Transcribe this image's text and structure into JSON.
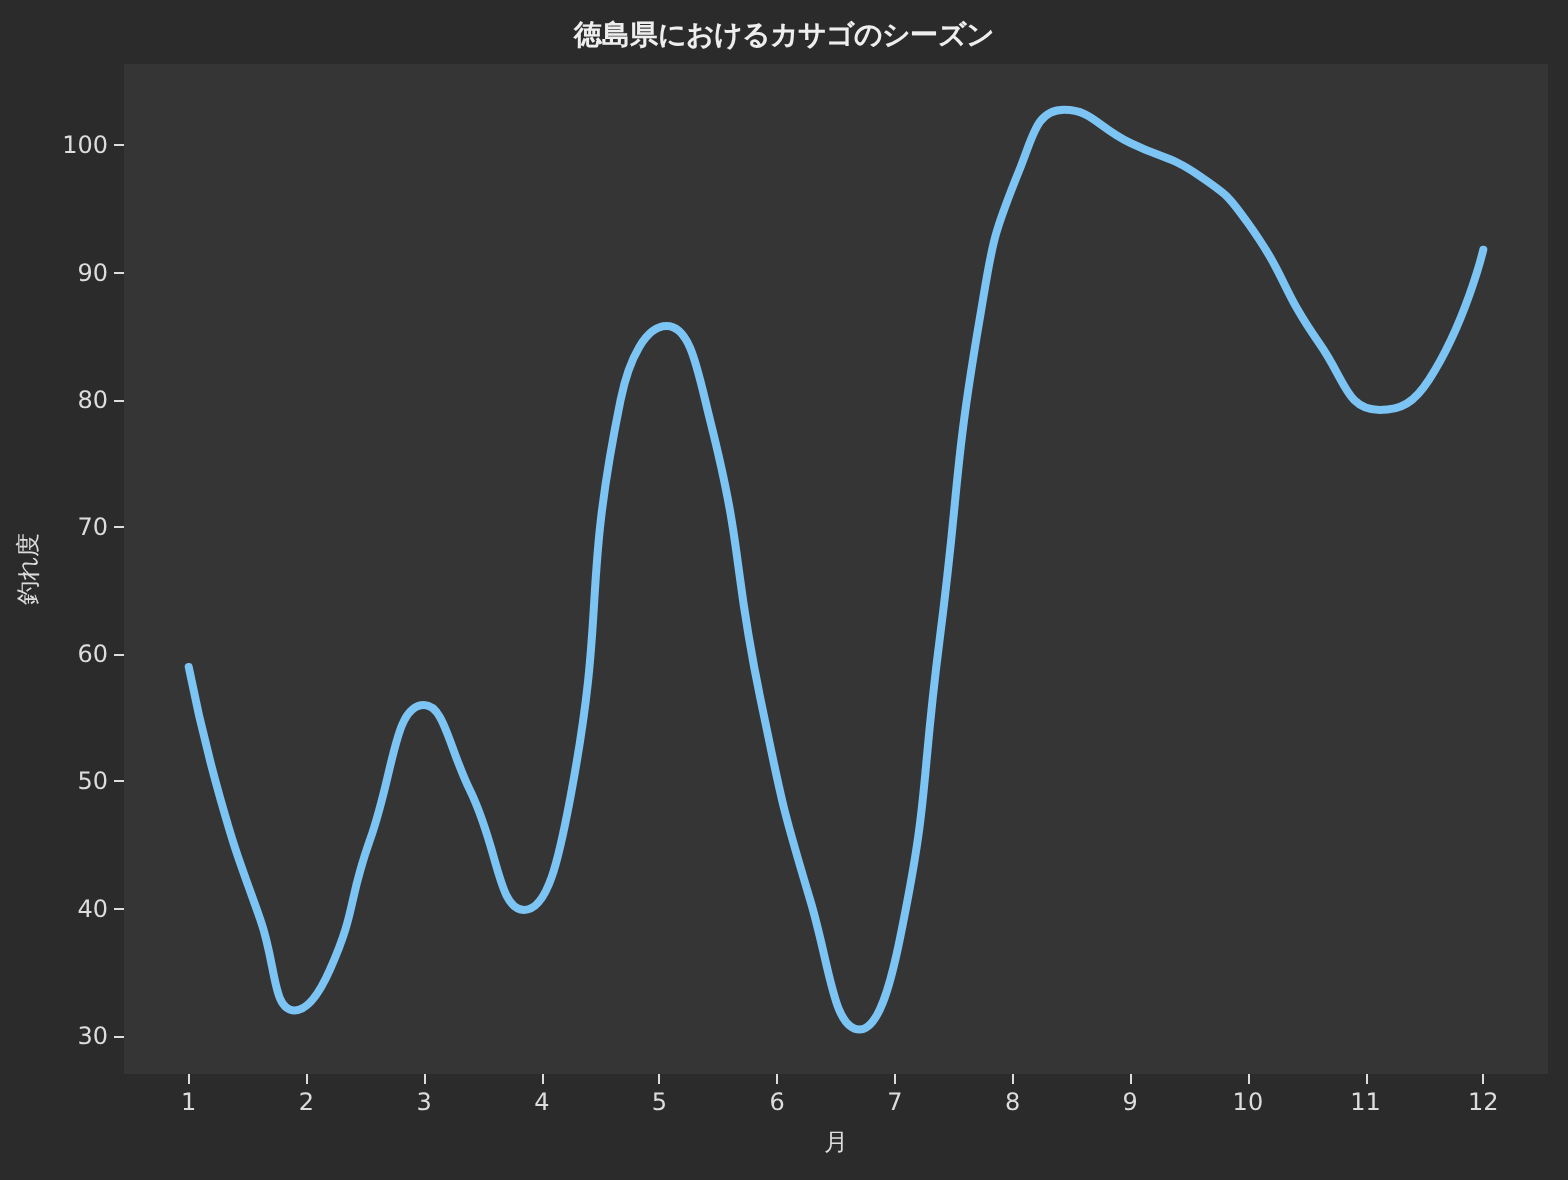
{
  "chart_data": {
    "type": "line",
    "title": "徳島県におけるカサゴのシーズン",
    "xlabel": "月",
    "ylabel": "釣れ度",
    "xlim": [
      0.45,
      12.55
    ],
    "ylim": [
      27,
      106.4
    ],
    "xticks": [
      1,
      2,
      3,
      4,
      5,
      6,
      7,
      8,
      9,
      10,
      11,
      12
    ],
    "yticks": [
      30,
      40,
      50,
      60,
      70,
      80,
      90,
      100
    ],
    "grid": false,
    "marker": "none",
    "line_style": "solid",
    "series": [
      {
        "color": "#7cc4f4",
        "x": [
          1,
          1.27,
          1.61,
          1.9,
          2.2,
          2.54,
          3,
          3.39,
          3.85,
          4.24,
          4.67,
          5.06,
          5.43,
          5.86,
          6.28,
          6.7,
          7.04,
          7.38,
          7.72,
          8.06,
          8.44,
          9,
          9.59,
          10,
          10.61,
          11.12,
          11.54,
          12
        ],
        "values": [
          59,
          48.6,
          39.1,
          32,
          35.2,
          45.4,
          56,
          49.3,
          39.9,
          48.6,
          80,
          85.8,
          78.4,
          56.4,
          40.7,
          30.5,
          37.5,
          61.1,
          86.3,
          98.1,
          102.8,
          100.2,
          97.6,
          93.9,
          84.4,
          79.2,
          81.6,
          91.8
        ]
      }
    ]
  }
}
